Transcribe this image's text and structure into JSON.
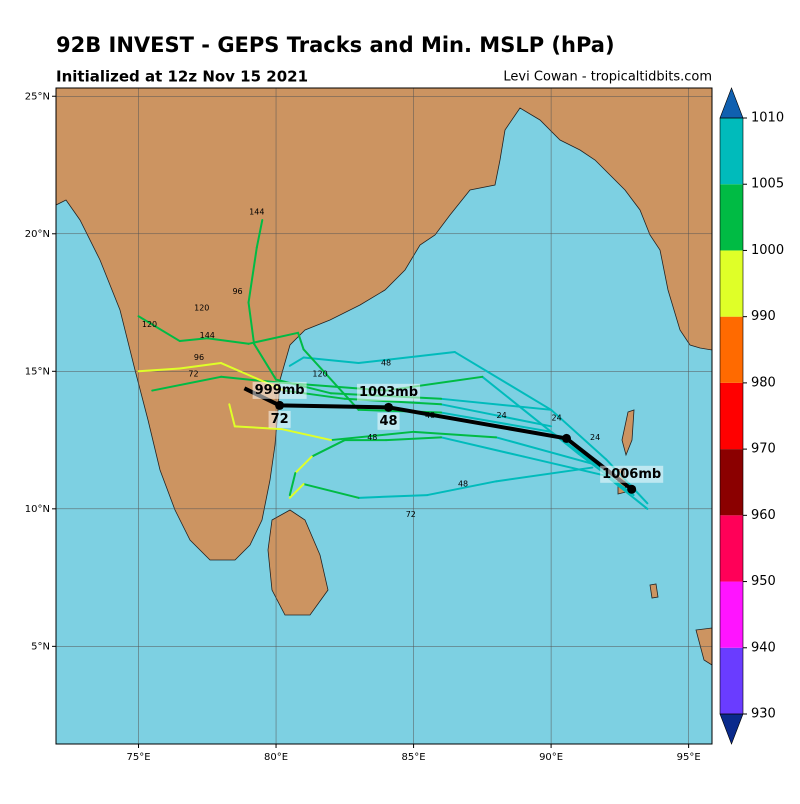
{
  "title": "92B INVEST - GEPS Tracks and Min. MSLP (hPa)",
  "subtitle": "Initialized at 12z Nov 15 2021",
  "credit": "Levi Cowan - tropicaltidbits.com",
  "map": {
    "xlim": [
      72,
      95.85
    ],
    "ylim": [
      1.45,
      25.3
    ],
    "xticks": [
      {
        "value": 75,
        "label": "75°E"
      },
      {
        "value": 80,
        "label": "80°E"
      },
      {
        "value": 85,
        "label": "85°E"
      },
      {
        "value": 90,
        "label": "90°E"
      },
      {
        "value": 95,
        "label": "95°E"
      }
    ],
    "yticks": [
      {
        "value": 5,
        "label": "5°N"
      },
      {
        "value": 10,
        "label": "10°N"
      },
      {
        "value": 15,
        "label": "15°N"
      },
      {
        "value": 20,
        "label": "20°N"
      },
      {
        "value": 25,
        "label": "25°N"
      }
    ],
    "grid": true
  },
  "colorbar": {
    "levels": [
      930,
      940,
      950,
      960,
      970,
      980,
      990,
      1000,
      1005,
      1010
    ],
    "colors": [
      "#6a3cff",
      "#ff14ff",
      "#ff0058",
      "#8b0000",
      "#ff0000",
      "#ff6a00",
      "#dfff28",
      "#00bb44",
      "#00bbbb"
    ],
    "extend_colors": [
      "#0a2a8c",
      "#1060b0"
    ]
  },
  "members": [
    {
      "lon": [
        93.5,
        92,
        90,
        86.5,
        83,
        81,
        80.5
      ],
      "lat": [
        10.2,
        11.8,
        13.6,
        15.7,
        15.3,
        15.5,
        15.2
      ],
      "mslp": [
        1006,
        1006,
        1005,
        1005,
        1005,
        1005,
        1006
      ]
    },
    {
      "lon": [
        93,
        91,
        87.5,
        84,
        80,
        78,
        75.5
      ],
      "lat": [
        10.5,
        12,
        14.8,
        14.3,
        14.6,
        14.8,
        14.3
      ],
      "mslp": [
        1006,
        1005,
        1004,
        1003,
        1002,
        1001,
        1003
      ]
    },
    {
      "lon": [
        91.5,
        88,
        85.5,
        83,
        81,
        80.5
      ],
      "lat": [
        11.5,
        11,
        10.5,
        10.4,
        10.9,
        10.4
      ],
      "mslp": [
        1006,
        1006,
        1005,
        1004,
        999,
        1002
      ]
    },
    {
      "lon": [
        92,
        88,
        85,
        82,
        80.2,
        78.5,
        78.3
      ],
      "lat": [
        11.5,
        12.6,
        12.8,
        12.5,
        12.9,
        13,
        13.8
      ],
      "mslp": [
        1006,
        1004,
        1001,
        998,
        996,
        997,
        1002
      ]
    },
    {
      "lon": [
        90,
        86,
        82,
        80,
        79.2,
        79,
        79.3,
        79.5
      ],
      "lat": [
        13.6,
        14,
        14.2,
        14.7,
        16,
        17.5,
        19.5,
        20.5
      ],
      "mslp": [
        1006,
        1004,
        1002,
        1002,
        1001,
        1003,
        1004,
        1005
      ]
    },
    {
      "lon": [
        90,
        86,
        82.5,
        80.3,
        78,
        76.5,
        75
      ],
      "lat": [
        13,
        13.8,
        14,
        14.3,
        15.3,
        15.1,
        15
      ],
      "mslp": [
        1005,
        1003,
        1001,
        998,
        997,
        998,
        1001
      ]
    },
    {
      "lon": [
        92.5,
        90,
        86,
        83,
        81,
        80.8,
        79,
        77.5,
        76.5,
        75
      ],
      "lat": [
        11,
        12.8,
        13.5,
        13.6,
        15.8,
        16.4,
        16,
        16.2,
        16.1,
        17
      ],
      "mslp": [
        1006,
        1005,
        1004,
        1003,
        1002,
        1002,
        1004,
        1001,
        1003,
        1004
      ]
    },
    {
      "lon": [
        93.5,
        92,
        89,
        86,
        84,
        82.5,
        81.3,
        80.7,
        80.5
      ],
      "lat": [
        10,
        11.2,
        11.9,
        12.6,
        12.5,
        12.5,
        11.9,
        11.3,
        10.5
      ],
      "mslp": [
        1006,
        1006,
        1005,
        1004,
        1003,
        1001,
        999,
        1000,
        1001
      ]
    }
  ],
  "hour_labels": [
    {
      "text": "24",
      "lon": 88.2,
      "lat": 13.4
    },
    {
      "text": "24",
      "lon": 90.2,
      "lat": 13.3
    },
    {
      "text": "24",
      "lon": 91.6,
      "lat": 12.6
    },
    {
      "text": "48",
      "lon": 84,
      "lat": 15.3
    },
    {
      "text": "48",
      "lon": 85.6,
      "lat": 13.4
    },
    {
      "text": "48",
      "lon": 83.5,
      "lat": 12.6
    },
    {
      "text": "48",
      "lon": 86.8,
      "lat": 10.9
    },
    {
      "text": "72",
      "lon": 77,
      "lat": 14.9
    },
    {
      "text": "72",
      "lon": 84.9,
      "lat": 9.8
    },
    {
      "text": "96",
      "lon": 77.2,
      "lat": 15.5
    },
    {
      "text": "96",
      "lon": 78.6,
      "lat": 17.9
    },
    {
      "text": "120",
      "lon": 77.3,
      "lat": 17.3
    },
    {
      "text": "120",
      "lon": 75.4,
      "lat": 16.7
    },
    {
      "text": "144",
      "lon": 79.3,
      "lat": 20.8
    },
    {
      "text": "144",
      "lon": 77.5,
      "lat": 16.3
    },
    {
      "text": "120",
      "lon": 81.6,
      "lat": 14.9
    }
  ],
  "mean_track": {
    "lon": [
      92.93,
      90.56,
      84.09,
      80.13,
      78.85
    ],
    "lat": [
      10.71,
      12.56,
      13.69,
      13.76,
      14.38
    ],
    "value_labels": [
      "1006mb",
      null,
      "1003mb",
      "999mb",
      null
    ],
    "hour_labels": [
      null,
      null,
      "48",
      "72",
      null
    ]
  }
}
